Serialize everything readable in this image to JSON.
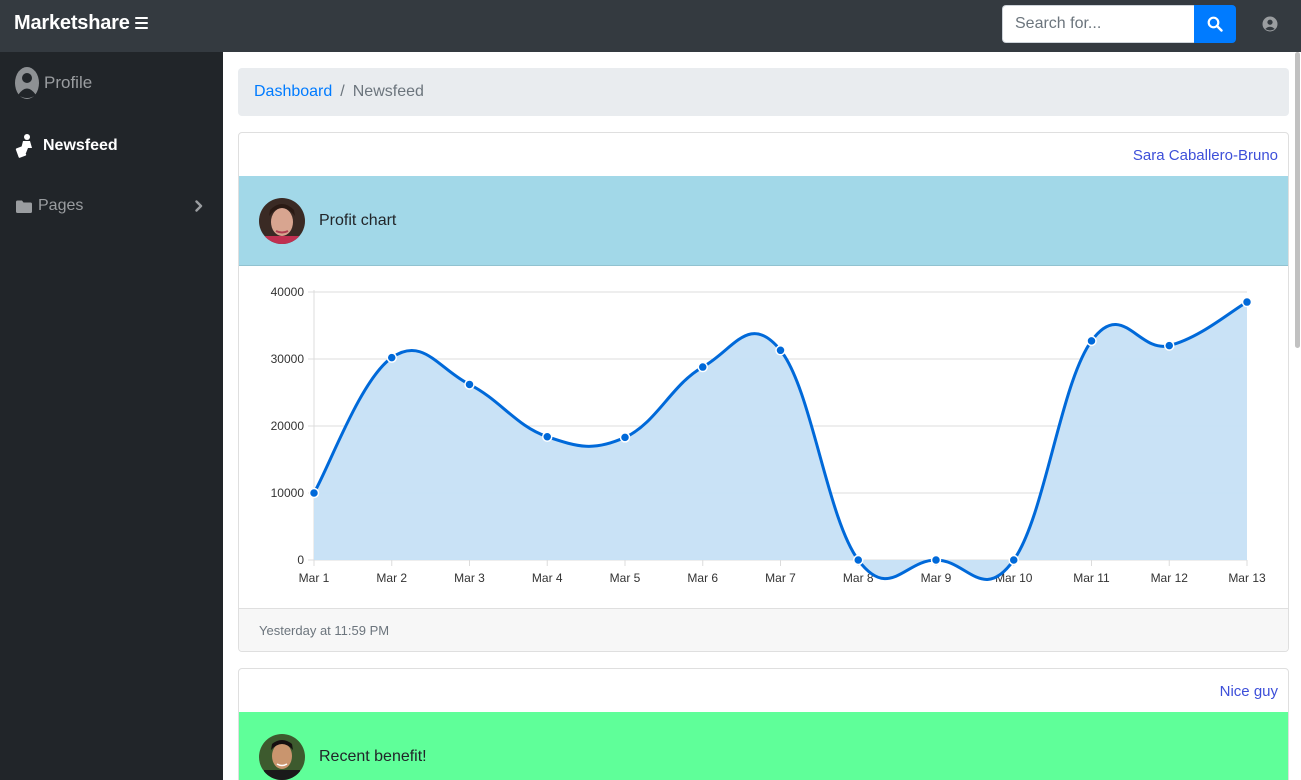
{
  "app": {
    "brand": "Marketshare"
  },
  "search": {
    "placeholder": "Search for..."
  },
  "sidebar": {
    "items": [
      {
        "label": "Profile"
      },
      {
        "label": "Newsfeed"
      },
      {
        "label": "Pages"
      }
    ]
  },
  "breadcrumb": {
    "link": "Dashboard",
    "separator": "/",
    "current": "Newsfeed"
  },
  "posts": [
    {
      "author": "Sara Caballero-Bruno",
      "title": "Profit chart",
      "header_color": "#a2d8e8",
      "timestamp": "Yesterday at 11:59 PM"
    },
    {
      "author": "Nice guy",
      "title": "Recent benefit!",
      "header_color": "#5fff99"
    }
  ],
  "colors": {
    "navbar": "#343a40",
    "sidebar": "#212529",
    "primary": "#007bff",
    "line": "#0069d9",
    "area": "#c6e0f5"
  },
  "icons": {
    "menu": "menu-icon",
    "search": "search-icon",
    "user": "user-circle-icon",
    "profile": "profile-icon",
    "newsfeed": "newsfeed-icon",
    "pages": "folder-icon",
    "chevron": "chevron-right-icon"
  },
  "chart_data": {
    "type": "area",
    "x": [
      "Mar 1",
      "Mar 2",
      "Mar 3",
      "Mar 4",
      "Mar 5",
      "Mar 6",
      "Mar 7",
      "Mar 8",
      "Mar 9",
      "Mar 10",
      "Mar 11",
      "Mar 12",
      "Mar 13"
    ],
    "series": [
      {
        "values": [
          10000,
          30200,
          26200,
          18400,
          18300,
          28800,
          31300,
          0,
          0,
          0,
          32700,
          32000,
          38500
        ]
      }
    ],
    "yticks": [
      "0",
      "10000",
      "20000",
      "30000",
      "40000"
    ],
    "ylim": [
      0,
      40000
    ],
    "grid": true
  }
}
